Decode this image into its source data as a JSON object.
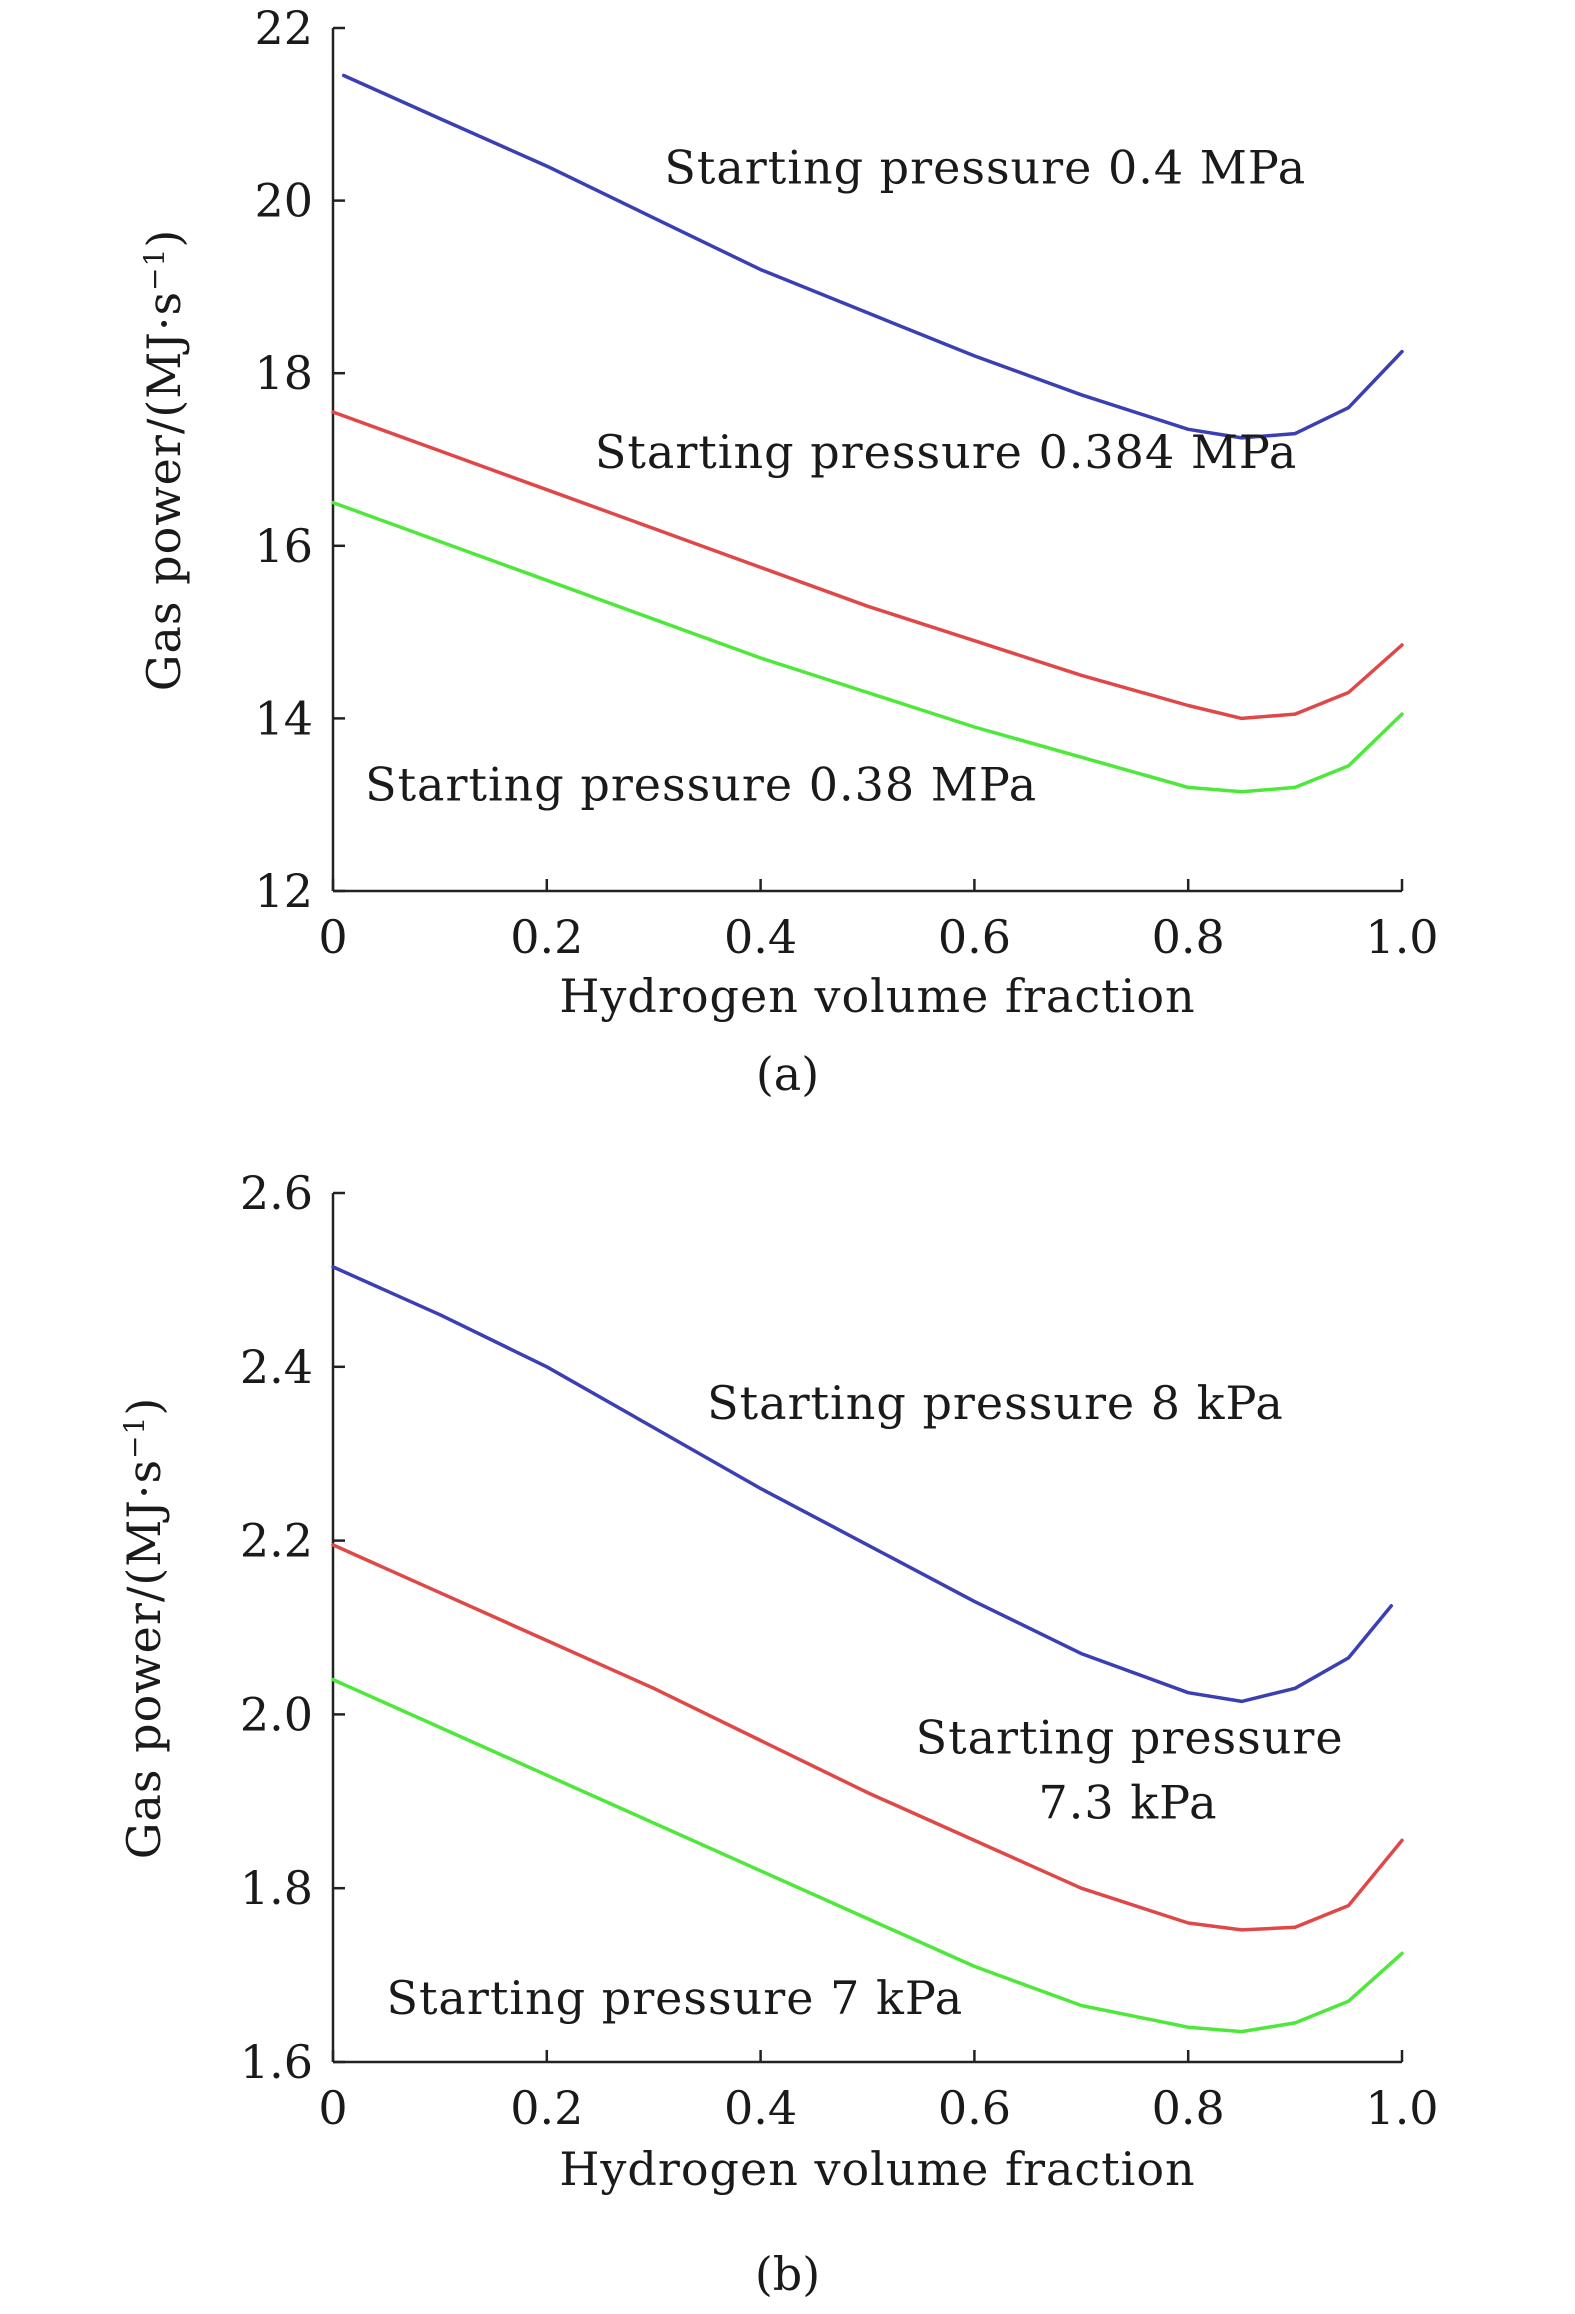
{
  "colors": {
    "blue": "#3b3fb4",
    "red": "#e04848",
    "green": "#4ee83a",
    "axis": "#222222"
  },
  "chart_data": [
    {
      "type": "line",
      "panel_label": "(a)",
      "xlabel": "Hydrogen volume fraction",
      "ylabel": "Gas power/(MJ·s",
      "ylabel_sup": "−1",
      "ylabel_close": ")",
      "xlim": [
        0,
        1.0
      ],
      "ylim": [
        12,
        22
      ],
      "xticks": [
        0,
        0.2,
        0.4,
        0.6,
        0.8,
        1.0
      ],
      "xtick_labels": [
        "0",
        "0.2",
        "0.4",
        "0.6",
        "0.8",
        "1.0"
      ],
      "yticks": [
        12,
        14,
        16,
        18,
        20,
        22
      ],
      "ytick_labels": [
        "12",
        "14",
        "16",
        "18",
        "20",
        "22"
      ],
      "series": [
        {
          "name": "Starting pressure 0.4 MPa",
          "color": "blue",
          "x": [
            0.01,
            0.1,
            0.2,
            0.3,
            0.4,
            0.5,
            0.6,
            0.7,
            0.8,
            0.85,
            0.9,
            0.95,
            1.0
          ],
          "y": [
            21.45,
            20.95,
            20.4,
            19.8,
            19.2,
            18.7,
            18.2,
            17.75,
            17.35,
            17.25,
            17.3,
            17.6,
            18.25
          ]
        },
        {
          "name": "Starting pressure 0.384 MPa",
          "color": "red",
          "x": [
            0,
            0.1,
            0.2,
            0.3,
            0.4,
            0.5,
            0.6,
            0.7,
            0.8,
            0.85,
            0.9,
            0.95,
            1.0
          ],
          "y": [
            17.55,
            17.1,
            16.65,
            16.2,
            15.75,
            15.3,
            14.9,
            14.5,
            14.15,
            14.0,
            14.05,
            14.3,
            14.85
          ]
        },
        {
          "name": "Starting pressure 0.38 MPa",
          "color": "green",
          "x": [
            0,
            0.1,
            0.2,
            0.3,
            0.4,
            0.5,
            0.6,
            0.7,
            0.8,
            0.85,
            0.9,
            0.95,
            1.0
          ],
          "y": [
            16.5,
            16.05,
            15.6,
            15.15,
            14.7,
            14.3,
            13.9,
            13.55,
            13.2,
            13.15,
            13.2,
            13.45,
            14.05
          ]
        }
      ],
      "annotations": [
        {
          "text": "Starting pressure 0.4 MPa",
          "x": 0.31,
          "y": 20.2
        },
        {
          "text": "Starting pressure 0.384 MPa",
          "x": 0.245,
          "y": 16.9
        },
        {
          "text": "Starting pressure 0.38 MPa",
          "x": 0.03,
          "y": 13.05
        }
      ]
    },
    {
      "type": "line",
      "panel_label": "(b)",
      "xlabel": "Hydrogen volume fraction",
      "ylabel": "Gas power/(MJ·s",
      "ylabel_sup": "−1",
      "ylabel_close": ")",
      "xlim": [
        0,
        1.0
      ],
      "ylim": [
        1.6,
        2.6
      ],
      "xticks": [
        0,
        0.2,
        0.4,
        0.6,
        0.8,
        1.0
      ],
      "xtick_labels": [
        "0",
        "0.2",
        "0.4",
        "0.6",
        "0.8",
        "1.0"
      ],
      "yticks": [
        1.6,
        1.8,
        2.0,
        2.2,
        2.4,
        2.6
      ],
      "ytick_labels": [
        "1.6",
        "1.8",
        "2.0",
        "2.2",
        "2.4",
        "2.6"
      ],
      "series": [
        {
          "name": "Starting pressure 8 kPa",
          "color": "blue",
          "x": [
            0,
            0.1,
            0.2,
            0.3,
            0.4,
            0.5,
            0.6,
            0.7,
            0.8,
            0.85,
            0.9,
            0.95,
            0.99
          ],
          "y": [
            2.515,
            2.46,
            2.4,
            2.33,
            2.26,
            2.195,
            2.13,
            2.07,
            2.025,
            2.015,
            2.03,
            2.065,
            2.125
          ]
        },
        {
          "name": "Starting pressure 7.3 kPa",
          "color": "red",
          "x": [
            0,
            0.1,
            0.2,
            0.3,
            0.4,
            0.5,
            0.6,
            0.7,
            0.8,
            0.85,
            0.9,
            0.95,
            1.0
          ],
          "y": [
            2.195,
            2.14,
            2.085,
            2.03,
            1.97,
            1.91,
            1.855,
            1.8,
            1.76,
            1.752,
            1.755,
            1.78,
            1.855
          ]
        },
        {
          "name": "Starting pressure 7 kPa",
          "color": "green",
          "x": [
            0,
            0.1,
            0.2,
            0.3,
            0.4,
            0.5,
            0.6,
            0.7,
            0.8,
            0.85,
            0.9,
            0.95,
            1.0
          ],
          "y": [
            2.04,
            1.985,
            1.93,
            1.875,
            1.82,
            1.765,
            1.71,
            1.665,
            1.64,
            1.635,
            1.645,
            1.67,
            1.725
          ]
        }
      ],
      "annotations": [
        {
          "text": "Starting pressure 8 kPa",
          "x": 0.35,
          "y": 2.34
        },
        {
          "text": "Starting pressure",
          "x": 0.545,
          "y": 1.955
        },
        {
          "text": "7.3 kPa",
          "x": 0.66,
          "y": 1.88
        },
        {
          "text": "Starting pressure 7 kPa",
          "x": 0.05,
          "y": 1.655
        }
      ]
    }
  ]
}
